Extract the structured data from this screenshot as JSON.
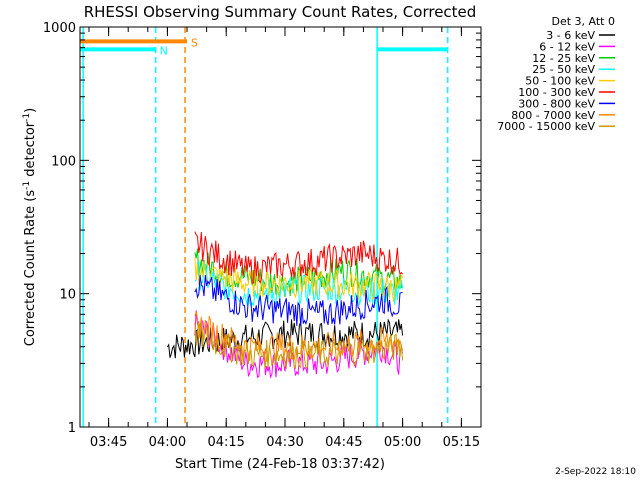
{
  "chart_data": {
    "type": "line",
    "title": "RHESSI Observing Summary Count Rates, Corrected",
    "xlabel": "Start Time (24-Feb-18 03:37:42)",
    "ylabel_main": "Corrected Count Rate (s",
    "ylabel_sup1": "-1",
    "ylabel_mid": " detector",
    "ylabel_sup2": "-1",
    "ylabel_end": ")",
    "yscale": "log",
    "xlim": [
      "03:37:42",
      "05:20:00"
    ],
    "ylim": [
      1,
      1000
    ],
    "x_ticks": [
      "03:45",
      "04:00",
      "04:15",
      "04:30",
      "04:45",
      "05:00",
      "05:15"
    ],
    "y_ticks": [
      "1",
      "10",
      "100",
      "1000"
    ],
    "legend_position": "top-right",
    "legend_header": "Det 3, Att 0",
    "series": [
      {
        "name": "3 - 6 keV",
        "color": "#000000",
        "points": [
          [
            "04:00",
            4
          ],
          [
            "04:30",
            5
          ],
          [
            "05:00",
            5
          ]
        ]
      },
      {
        "name": "6 - 12 keV",
        "color": "#ff00ff",
        "points": [
          [
            "04:07",
            6
          ],
          [
            "04:20",
            3
          ],
          [
            "04:40",
            3
          ],
          [
            "04:55",
            4
          ],
          [
            "05:00",
            3
          ]
        ]
      },
      {
        "name": "12 - 25 keV",
        "color": "#00cc00",
        "points": [
          [
            "04:07",
            18
          ],
          [
            "04:15",
            14
          ],
          [
            "04:30",
            12
          ],
          [
            "04:45",
            15
          ],
          [
            "05:00",
            12
          ]
        ]
      },
      {
        "name": "25 - 50 keV",
        "color": "#00ffff",
        "points": [
          [
            "04:07",
            14
          ],
          [
            "04:20",
            10
          ],
          [
            "04:40",
            11
          ],
          [
            "05:00",
            10
          ]
        ]
      },
      {
        "name": "50 - 100 keV",
        "color": "#ffcc00",
        "points": [
          [
            "04:07",
            15
          ],
          [
            "04:20",
            12
          ],
          [
            "04:40",
            12
          ],
          [
            "05:00",
            11
          ]
        ]
      },
      {
        "name": "100 - 300 keV",
        "color": "#ff0000",
        "points": [
          [
            "04:07",
            24
          ],
          [
            "04:20",
            15
          ],
          [
            "04:35",
            17
          ],
          [
            "04:50",
            20
          ],
          [
            "05:00",
            17
          ]
        ]
      },
      {
        "name": "300 - 800 keV",
        "color": "#0000ff",
        "points": [
          [
            "04:07",
            12
          ],
          [
            "04:20",
            8
          ],
          [
            "04:40",
            7
          ],
          [
            "04:55",
            9
          ],
          [
            "05:00",
            8
          ]
        ]
      },
      {
        "name": "800 - 7000 keV",
        "color": "#ff8800",
        "points": [
          [
            "04:07",
            6
          ],
          [
            "04:20",
            4
          ],
          [
            "04:40",
            4
          ],
          [
            "05:00",
            4.5
          ]
        ]
      },
      {
        "name": "7000 - 15000 keV",
        "color": "#cc9900",
        "points": [
          [
            "04:07",
            5
          ],
          [
            "04:20",
            3.5
          ],
          [
            "04:40",
            3.5
          ],
          [
            "05:00",
            4
          ]
        ]
      }
    ],
    "annotations": [
      {
        "label": "S",
        "color": "#ff8800",
        "start": "03:37:42",
        "end": "04:05:00",
        "level": 780
      },
      {
        "label": "N",
        "color": "#00ffff",
        "start": "03:37:42",
        "end": "03:57:00",
        "level": 680
      },
      {
        "label": "",
        "color": "#00ffff",
        "start": "04:53:30",
        "end": "05:11:30",
        "level": 680
      }
    ],
    "vertical_lines": [
      {
        "time": "03:38:30",
        "color": "#00ffff",
        "style": "solid"
      },
      {
        "time": "03:57:00",
        "color": "#00ffff",
        "style": "dashed"
      },
      {
        "time": "04:04:30",
        "color": "#ff8800",
        "style": "dashed"
      },
      {
        "time": "04:53:30",
        "color": "#00ffff",
        "style": "solid"
      },
      {
        "time": "05:11:30",
        "color": "#00ffff",
        "style": "dashed"
      }
    ]
  },
  "footer": {
    "date_stamp": "2-Sep-2022 18:10"
  }
}
